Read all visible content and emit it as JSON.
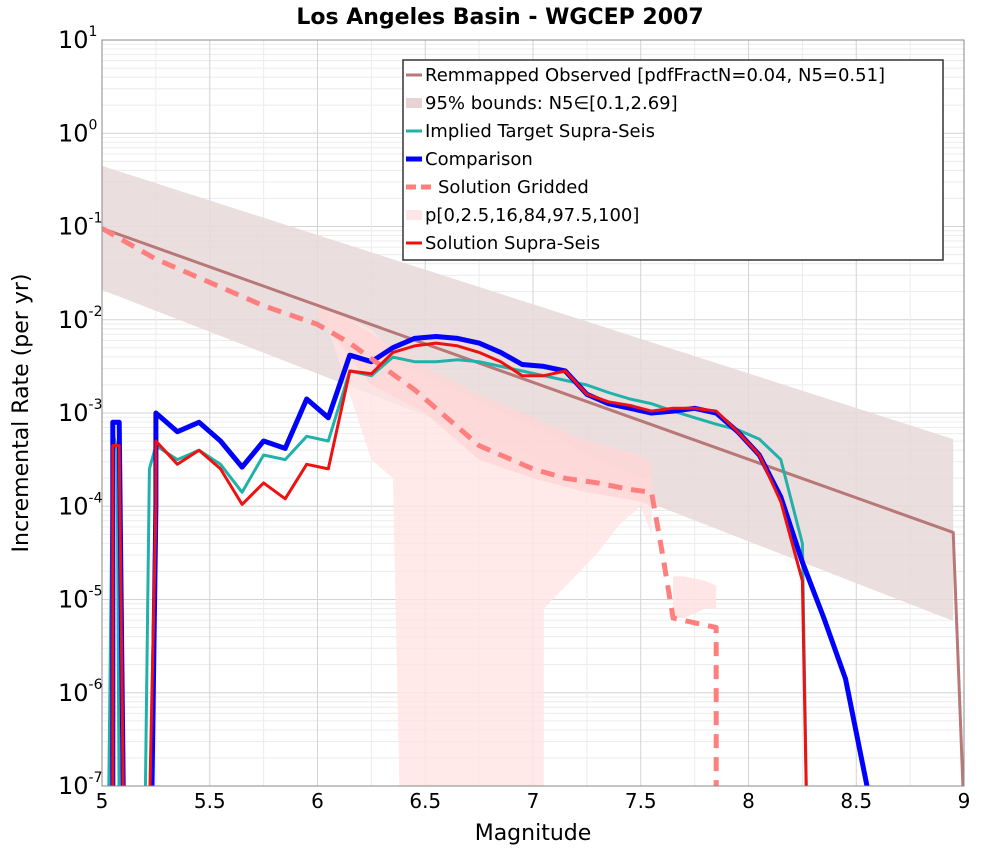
{
  "chart_data": {
    "type": "line",
    "title": "Los Angeles Basin - WGCEP 2007",
    "xlabel": "Magnitude",
    "ylabel": "Incremental Rate (per yr)",
    "xlim": [
      5,
      9
    ],
    "ylim_log10": [
      -7,
      1
    ],
    "log_y": true,
    "grid": true,
    "legend_position": "top-right",
    "x_ticks": [
      "5",
      "5.5",
      "6",
      "6.5",
      "7",
      "7.5",
      "8",
      "8.5",
      "9"
    ],
    "y_ticks": [
      {
        "exp": 1,
        "base": "10",
        "sup": "1"
      },
      {
        "exp": 0,
        "base": "10",
        "sup": "0"
      },
      {
        "exp": -1,
        "base": "10",
        "sup": "-1"
      },
      {
        "exp": -2,
        "base": "10",
        "sup": "-2"
      },
      {
        "exp": -3,
        "base": "10",
        "sup": "-3"
      },
      {
        "exp": -4,
        "base": "10",
        "sup": "-4"
      },
      {
        "exp": -5,
        "base": "10",
        "sup": "-5"
      },
      {
        "exp": -6,
        "base": "10",
        "sup": "-6"
      },
      {
        "exp": -7,
        "base": "10",
        "sup": "-7"
      }
    ],
    "legend": [
      {
        "label": "Remmapped Observed [pdfFractN=0.04, N5=0.51]",
        "color": "#b87878",
        "style": "line",
        "width": 3
      },
      {
        "label": "95% bounds: N5∈[0.1,2.69]",
        "color": "#e6d3d3",
        "style": "box",
        "width": 8
      },
      {
        "label": "Implied Target Supra-Seis",
        "color": "#20b2aa",
        "style": "line",
        "width": 3
      },
      {
        "label": "Comparison",
        "color": "#0000ff",
        "style": "line",
        "width": 5
      },
      {
        "label": "Solution Gridded",
        "color": "#ff7f7f",
        "style": "dash",
        "width": 5
      },
      {
        "label": "p[0,2.5,16,84,97.5,100]",
        "color": "#ffe6e6",
        "style": "box",
        "width": 8
      },
      {
        "label": "Solution Supra-Seis",
        "color": "#ee1111",
        "style": "line",
        "width": 3
      }
    ],
    "bounds_95": {
      "x": [
        5.0,
        8.95
      ],
      "upper_log10": [
        -0.35,
        -3.28
      ],
      "lower_log10": [
        -1.68,
        -5.23
      ],
      "color": "#e8d8d8"
    },
    "fractile_bands": [
      {
        "color": "#ffe4e4",
        "x": [
          6.05,
          6.25,
          6.35,
          6.38,
          6.4,
          7.05,
          7.05,
          7.3,
          7.4,
          7.5,
          7.55
        ],
        "lower": [
          -2.1,
          -3.5,
          -3.7,
          -7.0,
          -7.0,
          -7.0,
          -5.1,
          -4.5,
          -4.2,
          -4.0,
          -4.3
        ],
        "upper": [
          -1.9,
          -2.1,
          -2.35,
          -2.5,
          -2.5,
          -3.2,
          -3.2,
          -3.5,
          -3.6,
          -3.7,
          -3.7
        ]
      },
      {
        "color": "#ffd6d6",
        "x": [
          6.0,
          6.25,
          6.5,
          6.75,
          7.0,
          7.25,
          7.5,
          7.55
        ],
        "lower": [
          -1.95,
          -2.7,
          -3.0,
          -3.5,
          -3.7,
          -3.85,
          -3.95,
          -4.0
        ],
        "upper": [
          -1.8,
          -2.15,
          -2.5,
          -2.8,
          -3.05,
          -3.3,
          -3.45,
          -3.55
        ]
      },
      {
        "color": "#ffe0e0",
        "x": [
          7.65,
          7.7,
          7.8,
          7.85
        ],
        "lower": [
          -5.2,
          -5.2,
          -5.1,
          -5.1
        ],
        "upper": [
          -4.75,
          -4.75,
          -4.8,
          -4.85
        ]
      }
    ],
    "series": [
      {
        "name": "Remmapped Observed [pdfFractN=0.04, N5=0.51]",
        "color": "#b87878",
        "width": 3,
        "dash": "",
        "x": [
          5.0,
          8.95,
          8.95,
          9.0
        ],
        "y_log10": [
          -1.02,
          -4.28,
          -4.28,
          -7.3
        ]
      },
      {
        "name": "Implied Target Supra-Seis",
        "color": "#20b2aa",
        "width": 3,
        "dash": "",
        "x": [
          5.03,
          5.05,
          5.07,
          5.08,
          5.2,
          5.22,
          5.25,
          5.35,
          5.45,
          5.55,
          5.65,
          5.75,
          5.85,
          5.95,
          6.05,
          6.15,
          6.25,
          6.35,
          6.45,
          6.55,
          6.65,
          6.75,
          6.85,
          6.95,
          7.05,
          7.15,
          7.25,
          7.35,
          7.45,
          7.55,
          7.65,
          7.75,
          7.85,
          7.95,
          8.05,
          8.15,
          8.25,
          8.27
        ],
        "y_log10": [
          -7.3,
          -3.2,
          -3.4,
          -7.3,
          -7.3,
          -3.6,
          -3.35,
          -3.5,
          -3.4,
          -3.55,
          -3.85,
          -3.45,
          -3.5,
          -3.25,
          -3.3,
          -2.55,
          -2.6,
          -2.4,
          -2.45,
          -2.45,
          -2.43,
          -2.45,
          -2.5,
          -2.55,
          -2.6,
          -2.65,
          -2.7,
          -2.78,
          -2.85,
          -2.9,
          -2.98,
          -3.05,
          -3.12,
          -3.18,
          -3.28,
          -3.5,
          -4.4,
          -7.3
        ]
      },
      {
        "name": "Comparison",
        "color": "#0000ff",
        "width": 5,
        "dash": "",
        "x": [
          5.05,
          5.05,
          5.08,
          5.1,
          5.23,
          5.25,
          5.25,
          5.35,
          5.45,
          5.55,
          5.65,
          5.75,
          5.85,
          5.95,
          6.05,
          6.15,
          6.25,
          6.35,
          6.45,
          6.55,
          6.65,
          6.75,
          6.85,
          6.95,
          7.05,
          7.15,
          7.25,
          7.35,
          7.45,
          7.55,
          7.65,
          7.75,
          7.85,
          7.95,
          8.05,
          8.15,
          8.25,
          8.35,
          8.45,
          8.55,
          8.6
        ],
        "y_log10": [
          -7.3,
          -3.1,
          -3.1,
          -7.3,
          -7.3,
          -4.0,
          -3.0,
          -3.2,
          -3.1,
          -3.3,
          -3.58,
          -3.3,
          -3.38,
          -2.85,
          -3.05,
          -2.38,
          -2.45,
          -2.3,
          -2.2,
          -2.18,
          -2.2,
          -2.25,
          -2.35,
          -2.48,
          -2.5,
          -2.55,
          -2.8,
          -2.9,
          -2.95,
          -3.0,
          -2.98,
          -2.95,
          -3.0,
          -3.2,
          -3.45,
          -3.9,
          -4.6,
          -5.2,
          -5.85,
          -7.0,
          -7.3
        ]
      },
      {
        "name": "Solution Gridded",
        "color": "#ff7f7f",
        "width": 5,
        "dash": "14,9",
        "x": [
          5.0,
          5.25,
          5.5,
          5.75,
          6.0,
          6.15,
          6.3,
          6.45,
          6.55,
          6.65,
          6.75,
          6.85,
          7.0,
          7.15,
          7.3,
          7.45,
          7.55,
          7.6,
          7.65,
          7.75,
          7.85,
          7.85
        ],
        "y_log10": [
          -1.02,
          -1.35,
          -1.6,
          -1.85,
          -2.05,
          -2.25,
          -2.5,
          -2.75,
          -2.95,
          -3.15,
          -3.35,
          -3.45,
          -3.6,
          -3.7,
          -3.75,
          -3.82,
          -3.85,
          -4.5,
          -5.2,
          -5.25,
          -5.3,
          -7.3
        ]
      },
      {
        "name": "Solution Supra-Seis",
        "color": "#ee1111",
        "width": 3,
        "dash": "",
        "x": [
          5.05,
          5.05,
          5.08,
          5.1,
          5.22,
          5.25,
          5.25,
          5.35,
          5.45,
          5.55,
          5.65,
          5.75,
          5.85,
          5.95,
          6.05,
          6.15,
          6.25,
          6.35,
          6.45,
          6.55,
          6.65,
          6.75,
          6.85,
          6.95,
          7.05,
          7.15,
          7.25,
          7.35,
          7.45,
          7.55,
          7.65,
          7.75,
          7.85,
          7.95,
          8.05,
          8.15,
          8.25,
          8.27
        ],
        "y_log10": [
          -7.3,
          -3.35,
          -3.35,
          -7.3,
          -7.3,
          -4.0,
          -3.3,
          -3.55,
          -3.4,
          -3.6,
          -3.98,
          -3.75,
          -3.92,
          -3.55,
          -3.6,
          -2.55,
          -2.58,
          -2.35,
          -2.28,
          -2.25,
          -2.28,
          -2.35,
          -2.45,
          -2.6,
          -2.6,
          -2.55,
          -2.8,
          -2.88,
          -2.92,
          -2.98,
          -2.95,
          -2.95,
          -2.98,
          -3.2,
          -3.45,
          -3.95,
          -4.8,
          -7.3
        ]
      }
    ]
  }
}
